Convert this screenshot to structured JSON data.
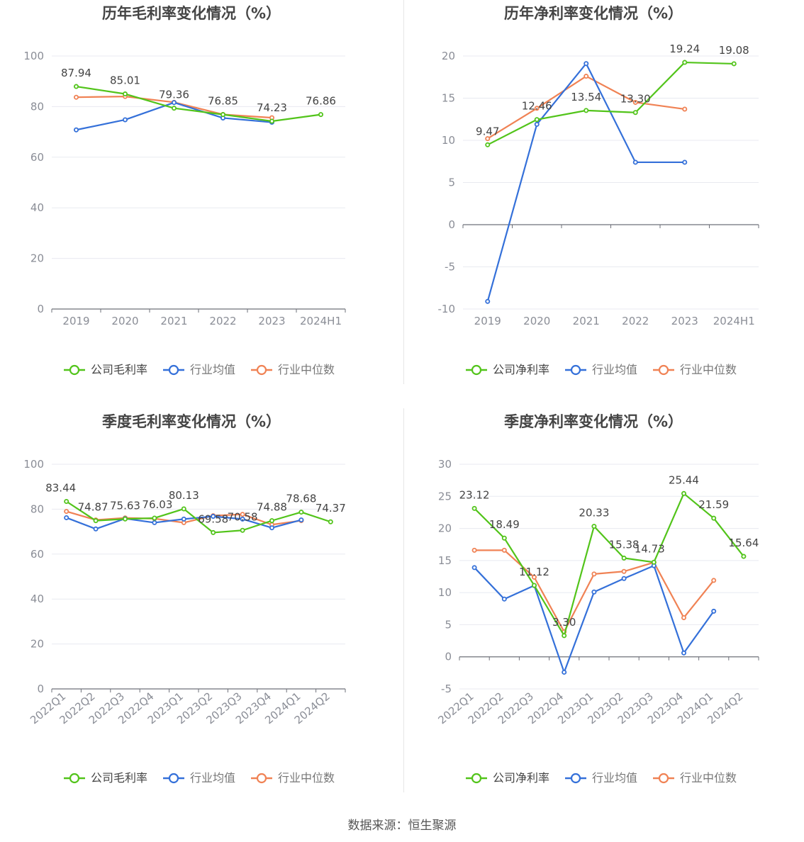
{
  "source": "数据来源：恒生聚源",
  "colors": {
    "company": "#52c41a",
    "avg": "#3470d9",
    "median": "#f08254",
    "grid": "#e8eaf0",
    "axis": "#6e7079",
    "tick_text": "#8a8d96",
    "label_text": "#444444"
  },
  "chart_data": [
    {
      "type": "line",
      "title": "历年毛利率变化情况（%）",
      "categories": [
        "2019",
        "2020",
        "2021",
        "2022",
        "2023",
        "2024H1"
      ],
      "ylim": [
        0,
        100
      ],
      "yticks": [
        "0",
        "20",
        "40",
        "60",
        "80",
        "100"
      ],
      "legend": [
        "公司毛利率",
        "行业均值",
        "行业中位数"
      ],
      "series": [
        {
          "name": "公司毛利率",
          "values": [
            87.94,
            85.01,
            79.36,
            76.85,
            74.23,
            76.86
          ],
          "labels": [
            "87.94",
            "85.01",
            "79.36",
            "76.85",
            "74.23",
            "76.86"
          ]
        },
        {
          "name": "行业均值",
          "values": [
            70.8,
            74.8,
            81.6,
            75.5,
            73.8,
            null
          ]
        },
        {
          "name": "行业中位数",
          "values": [
            83.7,
            84.0,
            81.7,
            76.9,
            75.6,
            null
          ]
        }
      ]
    },
    {
      "type": "line",
      "title": "历年净利率变化情况（%）",
      "categories": [
        "2019",
        "2020",
        "2021",
        "2022",
        "2023",
        "2024H1"
      ],
      "ylim": [
        -10,
        20
      ],
      "yticks": [
        "-10",
        "-5",
        "0",
        "5",
        "10",
        "15",
        "20"
      ],
      "legend": [
        "公司净利率",
        "行业均值",
        "行业中位数"
      ],
      "series": [
        {
          "name": "公司净利率",
          "values": [
            9.47,
            12.46,
            13.54,
            13.3,
            19.24,
            19.08
          ],
          "labels": [
            "9.47",
            "12.46",
            "13.54",
            "13.30",
            "19.24",
            "19.08"
          ]
        },
        {
          "name": "行业均值",
          "values": [
            -9.1,
            11.9,
            19.1,
            7.4,
            7.4,
            null
          ]
        },
        {
          "name": "行业中位数",
          "values": [
            10.2,
            13.8,
            17.6,
            14.5,
            13.7,
            null
          ]
        }
      ]
    },
    {
      "type": "line",
      "title": "季度毛利率变化情况（%）",
      "categories": [
        "2022Q1",
        "2022Q2",
        "2022Q3",
        "2022Q4",
        "2023Q1",
        "2023Q2",
        "2023Q3",
        "2023Q4",
        "2024Q1",
        "2024Q2"
      ],
      "ylim": [
        0,
        100
      ],
      "yticks": [
        "0",
        "20",
        "40",
        "60",
        "80",
        "100"
      ],
      "legend": [
        "公司毛利率",
        "行业均值",
        "行业中位数"
      ],
      "series": [
        {
          "name": "公司毛利率",
          "values": [
            83.44,
            74.87,
            75.63,
            76.03,
            80.13,
            69.58,
            70.58,
            74.88,
            78.68,
            74.37
          ],
          "labels": [
            "83.44",
            "74.87",
            "75.63",
            "76.03",
            "80.13",
            "69.58",
            "70.58",
            "74.88",
            "78.68",
            "74.37"
          ]
        },
        {
          "name": "行业均值",
          "values": [
            76.2,
            71.2,
            75.8,
            74.0,
            75.6,
            76.8,
            75.6,
            71.7,
            75.2,
            null
          ]
        },
        {
          "name": "行业中位数",
          "values": [
            79.0,
            75.2,
            76.1,
            75.8,
            74.0,
            77.1,
            77.7,
            73.1,
            74.9,
            null
          ]
        }
      ]
    },
    {
      "type": "line",
      "title": "季度净利率变化情况（%）",
      "categories": [
        "2022Q1",
        "2022Q2",
        "2022Q3",
        "2022Q4",
        "2023Q1",
        "2023Q2",
        "2023Q3",
        "2023Q4",
        "2024Q1",
        "2024Q2"
      ],
      "ylim": [
        -5,
        30
      ],
      "yticks": [
        "-5",
        "0",
        "5",
        "10",
        "15",
        "20",
        "25",
        "30"
      ],
      "legend": [
        "公司净利率",
        "行业均值",
        "行业中位数"
      ],
      "series": [
        {
          "name": "公司净利率",
          "values": [
            23.12,
            18.49,
            11.12,
            3.3,
            20.33,
            15.38,
            14.73,
            25.44,
            21.59,
            15.64
          ],
          "labels": [
            "23.12",
            "18.49",
            "11.12",
            "3.30",
            "20.33",
            "15.38",
            "14.73",
            "25.44",
            "21.59",
            "15.64"
          ]
        },
        {
          "name": "行业均值",
          "values": [
            13.9,
            9.0,
            11.1,
            -2.4,
            10.1,
            12.2,
            14.2,
            0.6,
            7.1,
            null
          ]
        },
        {
          "name": "行业中位数",
          "values": [
            16.6,
            16.6,
            12.4,
            3.9,
            12.9,
            13.3,
            14.7,
            6.1,
            11.9,
            null
          ]
        }
      ]
    }
  ]
}
